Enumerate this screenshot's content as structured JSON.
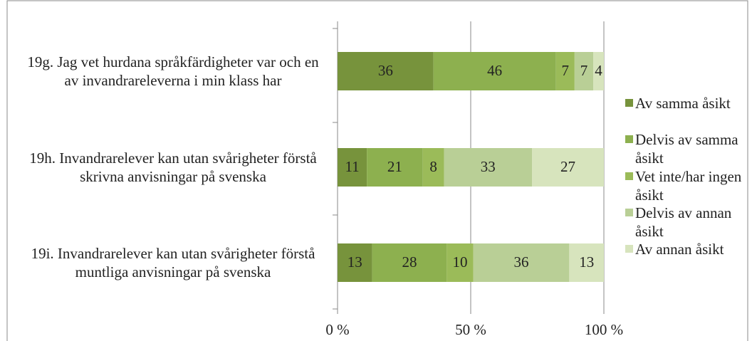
{
  "chart_data": {
    "type": "stacked-barh",
    "categories": [
      "19g. Jag vet hurdana språkfärdigheter var och en av invandrareleverna i min klass har",
      "19h. Invandrarelever kan utan svårigheter förstå skrivna anvisningar på svenska",
      "19i. Invandrarelever kan utan svårigheter förstå muntliga anvisningar på svenska"
    ],
    "series": [
      {
        "name": "Av samma åsikt",
        "color": "#77933c",
        "values": [
          36,
          11,
          13
        ]
      },
      {
        "name": "Delvis av samma åsikt",
        "color": "#8db04f",
        "values": [
          46,
          21,
          28
        ]
      },
      {
        "name": "Vet inte/har ingen åsikt",
        "color": "#9bbb59",
        "values": [
          7,
          8,
          10
        ]
      },
      {
        "name": "Delvis av annan åsikt",
        "color": "#b9cf96",
        "values": [
          7,
          33,
          36
        ]
      },
      {
        "name": "Av annan åsikt",
        "color": "#d7e4bd",
        "values": [
          4,
          27,
          13
        ]
      }
    ],
    "xlim": [
      0,
      100
    ],
    "xticks": [
      {
        "value": 0,
        "label": "0 %"
      },
      {
        "value": 50,
        "label": "50 %"
      },
      {
        "value": 100,
        "label": "100 %"
      }
    ],
    "grid": true,
    "legend": "right"
  }
}
